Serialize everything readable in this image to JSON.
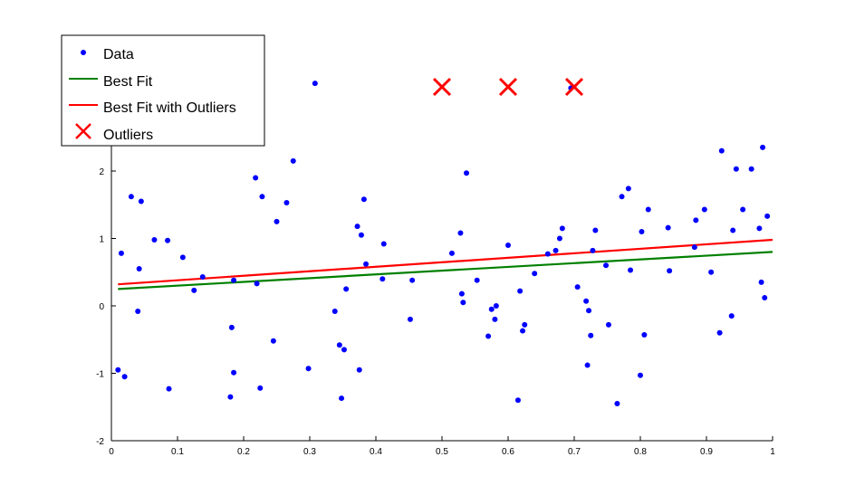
{
  "chart_data": {
    "type": "scatter",
    "title": "",
    "xlabel": "",
    "ylabel": "",
    "xlim": [
      0,
      1
    ],
    "ylim": [
      -2,
      4
    ],
    "xticks": [
      0,
      0.1,
      0.2,
      0.3,
      0.4,
      0.5,
      0.6,
      0.7,
      0.8,
      0.9,
      1
    ],
    "yticks": [
      -2,
      -1,
      0,
      1,
      2,
      3
    ],
    "xtick_labels": [
      "0",
      "0.1",
      "0.2",
      "0.3",
      "0.4",
      "0.5",
      "0.6",
      "0.7",
      "0.8",
      "0.9",
      "1"
    ],
    "ytick_labels": [
      "-2",
      "-1",
      "0",
      "1",
      "2",
      "3"
    ],
    "grid": false,
    "legend_position": "top-left",
    "legend": [
      "Data",
      "Best Fit",
      "Best Fit with Outliers",
      "Outliers"
    ],
    "series": [
      {
        "name": "Data",
        "kind": "scatter",
        "marker": "dot",
        "color": "#0000ff",
        "points": [
          [
            0.01,
            -0.95
          ],
          [
            0.015,
            0.78
          ],
          [
            0.02,
            -1.05
          ],
          [
            0.03,
            1.62
          ],
          [
            0.04,
            -0.08
          ],
          [
            0.042,
            0.55
          ],
          [
            0.045,
            1.55
          ],
          [
            0.065,
            0.98
          ],
          [
            0.082,
            2.6
          ],
          [
            0.085,
            0.97
          ],
          [
            0.087,
            -1.23
          ],
          [
            0.108,
            0.72
          ],
          [
            0.125,
            0.23
          ],
          [
            0.138,
            0.43
          ],
          [
            0.18,
            -1.35
          ],
          [
            0.182,
            -0.32
          ],
          [
            0.185,
            -0.99
          ],
          [
            0.185,
            0.38
          ],
          [
            0.218,
            1.9
          ],
          [
            0.22,
            0.33
          ],
          [
            0.225,
            -1.22
          ],
          [
            0.228,
            1.62
          ],
          [
            0.245,
            -0.52
          ],
          [
            0.25,
            1.25
          ],
          [
            0.265,
            1.53
          ],
          [
            0.275,
            2.15
          ],
          [
            0.298,
            -0.93
          ],
          [
            0.308,
            3.3
          ],
          [
            0.338,
            -0.08
          ],
          [
            0.345,
            -0.58
          ],
          [
            0.348,
            -1.37
          ],
          [
            0.352,
            -0.65
          ],
          [
            0.355,
            0.25
          ],
          [
            0.372,
            1.18
          ],
          [
            0.375,
            -0.95
          ],
          [
            0.378,
            1.05
          ],
          [
            0.382,
            1.58
          ],
          [
            0.385,
            0.62
          ],
          [
            0.41,
            0.4
          ],
          [
            0.412,
            0.92
          ],
          [
            0.452,
            -0.2
          ],
          [
            0.455,
            0.38
          ],
          [
            0.515,
            0.78
          ],
          [
            0.528,
            1.08
          ],
          [
            0.53,
            0.18
          ],
          [
            0.532,
            0.05
          ],
          [
            0.537,
            1.97
          ],
          [
            0.553,
            0.38
          ],
          [
            0.57,
            -0.45
          ],
          [
            0.575,
            -0.05
          ],
          [
            0.58,
            -0.2
          ],
          [
            0.582,
            0.0
          ],
          [
            0.6,
            0.9
          ],
          [
            0.615,
            -1.4
          ],
          [
            0.618,
            0.22
          ],
          [
            0.622,
            -0.37
          ],
          [
            0.625,
            -0.28
          ],
          [
            0.64,
            0.48
          ],
          [
            0.66,
            0.77
          ],
          [
            0.672,
            0.82
          ],
          [
            0.678,
            1.0
          ],
          [
            0.682,
            1.15
          ],
          [
            0.695,
            3.23
          ],
          [
            0.705,
            0.28
          ],
          [
            0.718,
            0.07
          ],
          [
            0.72,
            -0.88
          ],
          [
            0.722,
            -0.07
          ],
          [
            0.725,
            -0.44
          ],
          [
            0.728,
            0.82
          ],
          [
            0.732,
            1.12
          ],
          [
            0.748,
            0.6
          ],
          [
            0.752,
            -0.28
          ],
          [
            0.765,
            -1.45
          ],
          [
            0.772,
            1.62
          ],
          [
            0.782,
            1.74
          ],
          [
            0.785,
            0.53
          ],
          [
            0.8,
            -1.03
          ],
          [
            0.802,
            1.1
          ],
          [
            0.806,
            -0.43
          ],
          [
            0.812,
            1.43
          ],
          [
            0.842,
            1.16
          ],
          [
            0.844,
            0.52
          ],
          [
            0.882,
            0.87
          ],
          [
            0.884,
            1.27
          ],
          [
            0.897,
            1.43
          ],
          [
            0.907,
            0.5
          ],
          [
            0.92,
            -0.4
          ],
          [
            0.923,
            2.3
          ],
          [
            0.938,
            -0.15
          ],
          [
            0.94,
            1.12
          ],
          [
            0.945,
            2.03
          ],
          [
            0.955,
            1.43
          ],
          [
            0.968,
            2.03
          ],
          [
            0.98,
            1.15
          ],
          [
            0.983,
            0.35
          ],
          [
            0.985,
            2.35
          ],
          [
            0.988,
            0.12
          ],
          [
            0.992,
            1.33
          ]
        ]
      },
      {
        "name": "Best Fit",
        "kind": "line",
        "color": "#008000",
        "x": [
          0.01,
          1.0
        ],
        "y": [
          0.25,
          0.8
        ]
      },
      {
        "name": "Best Fit with Outliers",
        "kind": "line",
        "color": "#ff0000",
        "x": [
          0.01,
          1.0
        ],
        "y": [
          0.32,
          0.98
        ]
      },
      {
        "name": "Outliers",
        "kind": "scatter",
        "marker": "x",
        "color": "#ff0000",
        "points": [
          [
            0.5,
            5.0
          ],
          [
            0.6,
            5.0
          ],
          [
            0.7,
            5.0
          ]
        ]
      }
    ]
  }
}
